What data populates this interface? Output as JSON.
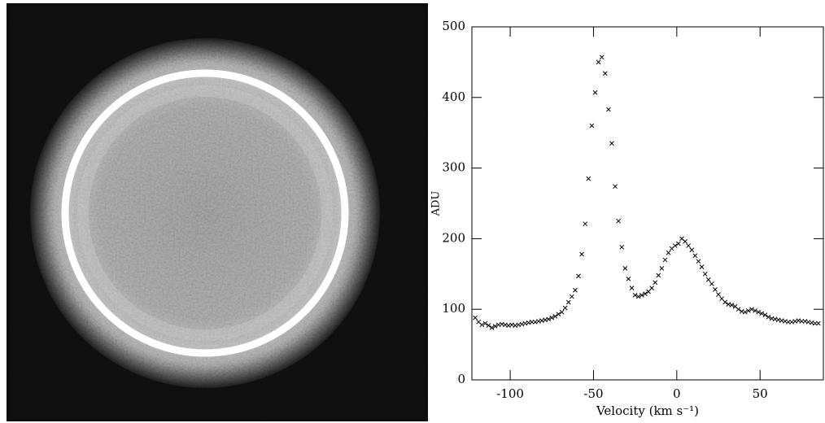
{
  "chart_data": {
    "type": "scatter",
    "xlabel": "Velocity (km s⁻¹)",
    "ylabel": "ADU",
    "xlim": [
      -123,
      88
    ],
    "ylim": [
      0,
      500
    ],
    "xticks": [
      -100,
      -50,
      0,
      50
    ],
    "yticks": [
      0,
      100,
      200,
      300,
      400,
      500
    ],
    "color": "#000000",
    "x": [
      -121,
      -119,
      -117,
      -115,
      -113,
      -111,
      -109,
      -107,
      -105,
      -103,
      -101,
      -99,
      -97,
      -95,
      -93,
      -91,
      -89,
      -87,
      -85,
      -83,
      -81,
      -79,
      -77,
      -75,
      -73,
      -71,
      -69,
      -67,
      -65,
      -63,
      -61,
      -59,
      -57,
      -55,
      -53,
      -51,
      -49,
      -47,
      -45,
      -43,
      -41,
      -39,
      -37,
      -35,
      -33,
      -31,
      -29,
      -27,
      -25,
      -23,
      -21,
      -19,
      -17,
      -15,
      -13,
      -11,
      -9,
      -7,
      -5,
      -3,
      -1,
      1,
      3,
      5,
      7,
      9,
      11,
      13,
      15,
      17,
      19,
      21,
      23,
      25,
      27,
      29,
      31,
      33,
      35,
      37,
      39,
      41,
      43,
      45,
      47,
      49,
      51,
      53,
      55,
      57,
      59,
      61,
      63,
      65,
      67,
      69,
      71,
      73,
      75,
      77,
      79,
      81,
      83,
      85
    ],
    "values": [
      88,
      82,
      78,
      80,
      77,
      74,
      76,
      78,
      79,
      78,
      77,
      78,
      77,
      78,
      79,
      80,
      81,
      82,
      82,
      83,
      84,
      85,
      86,
      88,
      90,
      93,
      96,
      102,
      110,
      118,
      127,
      147,
      178,
      221,
      285,
      360,
      407,
      450,
      457,
      434,
      383,
      335,
      274,
      225,
      188,
      158,
      143,
      130,
      120,
      118,
      120,
      122,
      125,
      130,
      138,
      148,
      158,
      170,
      180,
      186,
      190,
      193,
      200,
      196,
      190,
      184,
      176,
      168,
      160,
      150,
      142,
      136,
      128,
      121,
      115,
      110,
      107,
      106,
      104,
      100,
      97,
      96,
      98,
      100,
      98,
      96,
      94,
      92,
      89,
      87,
      86,
      85,
      84,
      83,
      82,
      82,
      83,
      84,
      83,
      83,
      82,
      81,
      80,
      80
    ]
  }
}
